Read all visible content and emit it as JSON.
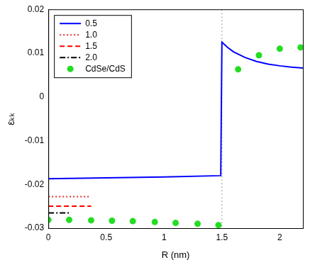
{
  "chart_data": {
    "type": "line",
    "x_label": "R (nm)",
    "y_label": "εₖₖ",
    "xlim": [
      0,
      2.2
    ],
    "xticks": [
      0,
      0.5,
      1,
      1.5,
      2
    ],
    "ylim": [
      -0.03,
      0.02
    ],
    "yticks": [
      -0.03,
      -0.02,
      -0.01,
      0,
      0.01,
      0.02
    ],
    "grid": false,
    "legend": "upper left",
    "reference_lines": [
      {
        "x": 1.5,
        "color": "#999999",
        "line_style": "dotted"
      }
    ],
    "series": [
      {
        "name": "0.5",
        "color": "#0000ff",
        "line_style": "solid",
        "x": [
          0,
          0.5,
          1.0,
          1.49,
          1.5,
          1.55,
          1.6,
          1.7,
          1.8,
          1.9,
          2.0,
          2.1,
          2.2
        ],
        "values": [
          -0.0187,
          -0.0185,
          -0.0183,
          -0.018,
          0.0125,
          0.0113,
          0.0103,
          0.009,
          0.0081,
          0.0075,
          0.0071,
          0.0068,
          0.0066
        ]
      },
      {
        "name": "1.0",
        "color": "#e03030",
        "line_style": "dotted",
        "x": [
          0,
          0.35
        ],
        "values": [
          -0.0228,
          -0.0228
        ]
      },
      {
        "name": "1.5",
        "color": "#ff0000",
        "line_style": "dashed",
        "x": [
          0,
          0.37
        ],
        "values": [
          -0.025,
          -0.025
        ]
      },
      {
        "name": "2.0",
        "color": "#000000",
        "line_style": "dashdot",
        "x": [
          0,
          0.18
        ],
        "values": [
          -0.0265,
          -0.0265
        ]
      },
      {
        "name": "CdSe/CdS",
        "color": "#22dd22",
        "marker": "circle",
        "x": [
          0,
          0.18,
          0.37,
          0.55,
          0.73,
          0.92,
          1.1,
          1.29,
          1.47,
          1.64,
          1.82,
          2.0,
          2.18
        ],
        "values": [
          -0.0281,
          -0.0281,
          -0.0282,
          -0.0283,
          -0.0284,
          -0.0286,
          -0.0288,
          -0.029,
          -0.0293,
          0.0063,
          0.0095,
          0.011,
          0.0113
        ]
      }
    ]
  }
}
